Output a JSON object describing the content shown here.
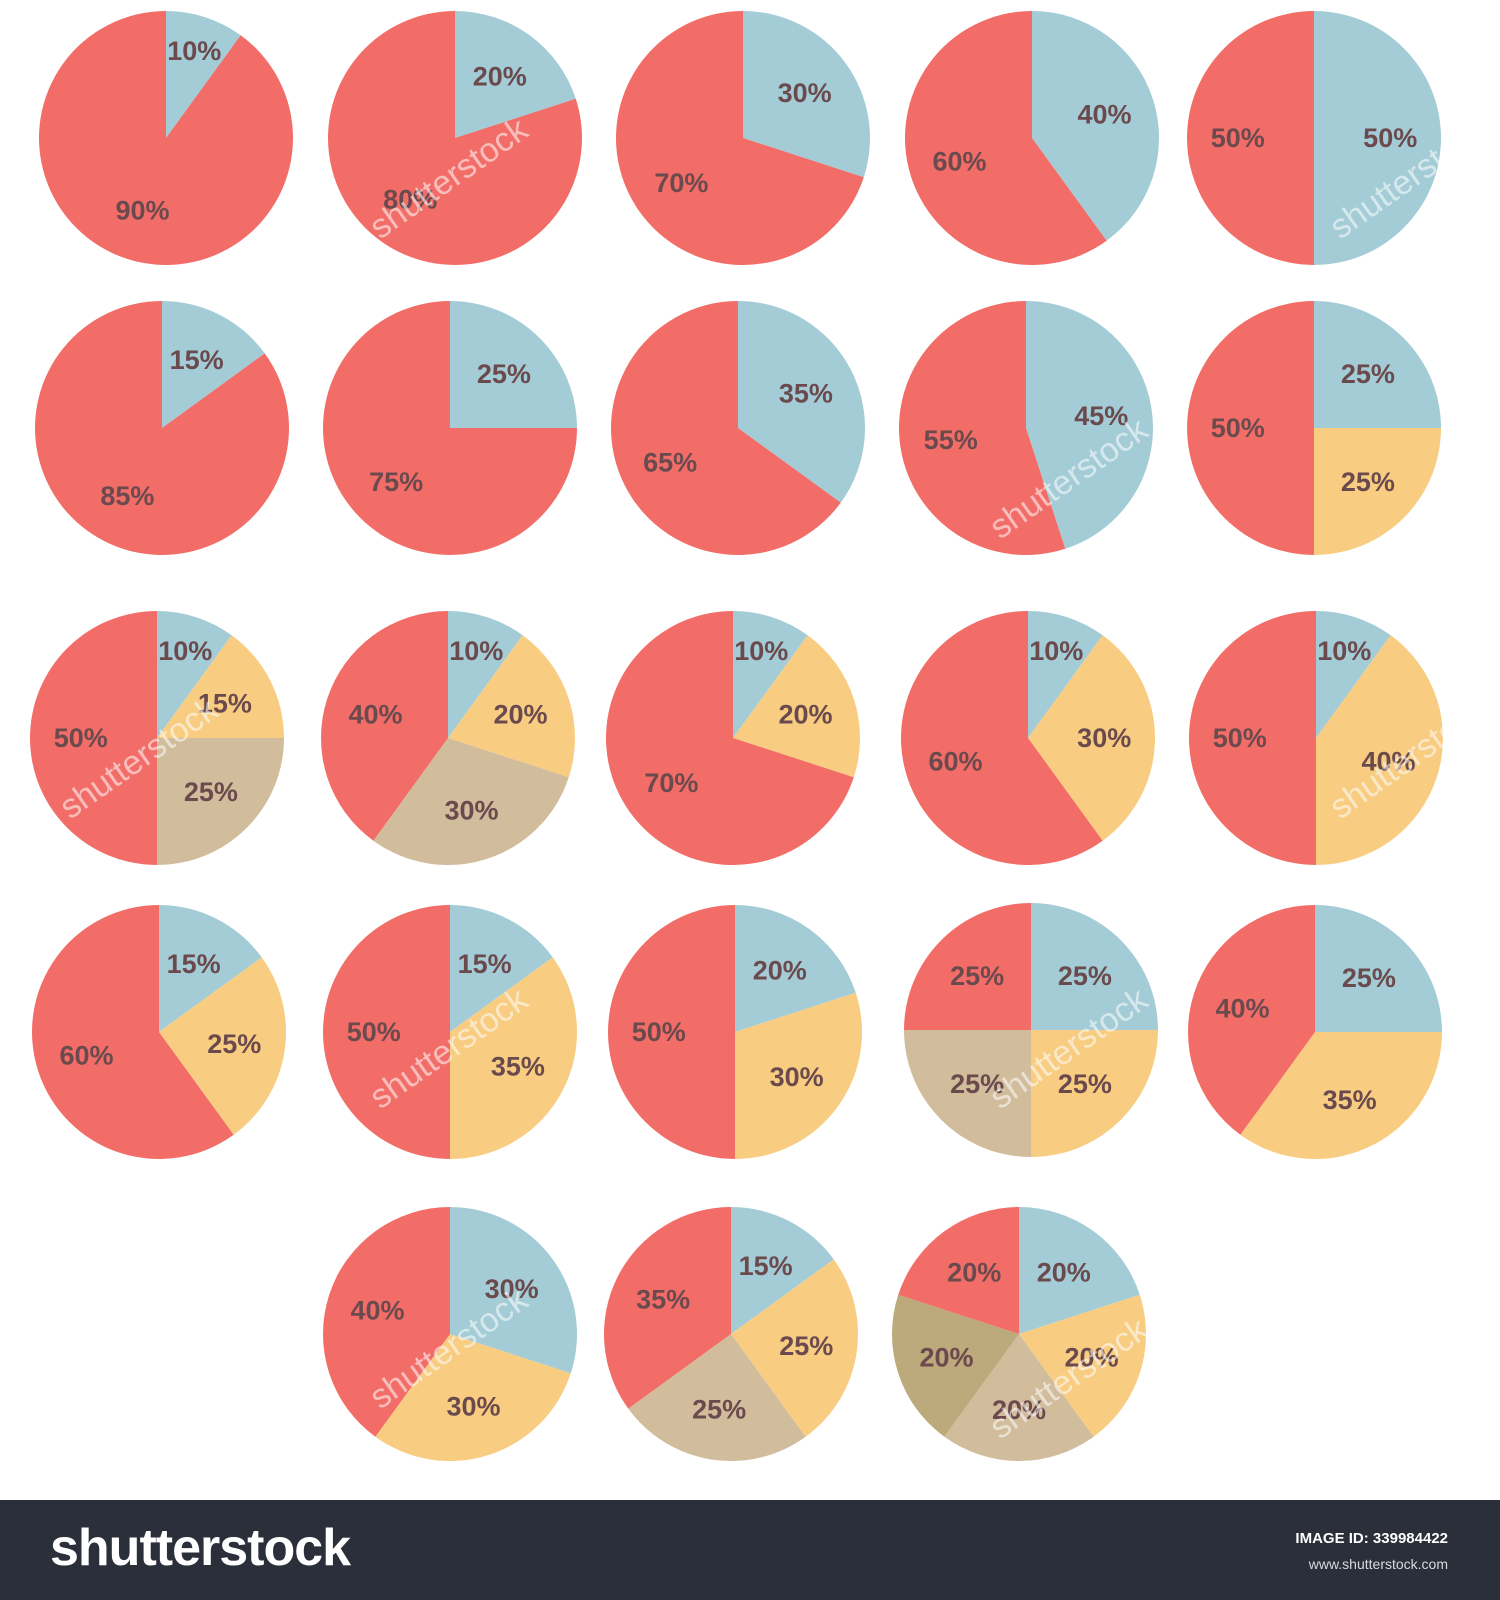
{
  "colors": {
    "red": "#f26d68",
    "blue": "#a3ccd6",
    "yellow": "#f8cd82",
    "tan": "#d1bd9c",
    "olive": "#bca97c",
    "label": "#6b4a4e"
  },
  "chart_data": [
    {
      "type": "pie",
      "slices": [
        {
          "label": "10%",
          "value": 10,
          "color": "blue"
        },
        {
          "label": "90%",
          "value": 90,
          "color": "red"
        }
      ]
    },
    {
      "type": "pie",
      "slices": [
        {
          "label": "20%",
          "value": 20,
          "color": "blue"
        },
        {
          "label": "80%",
          "value": 80,
          "color": "red"
        }
      ]
    },
    {
      "type": "pie",
      "slices": [
        {
          "label": "30%",
          "value": 30,
          "color": "blue"
        },
        {
          "label": "70%",
          "value": 70,
          "color": "red"
        }
      ]
    },
    {
      "type": "pie",
      "slices": [
        {
          "label": "40%",
          "value": 40,
          "color": "blue"
        },
        {
          "label": "60%",
          "value": 60,
          "color": "red"
        }
      ]
    },
    {
      "type": "pie",
      "slices": [
        {
          "label": "50%",
          "value": 50,
          "color": "blue"
        },
        {
          "label": "50%",
          "value": 50,
          "color": "red"
        }
      ]
    },
    {
      "type": "pie",
      "slices": [
        {
          "label": "15%",
          "value": 15,
          "color": "blue"
        },
        {
          "label": "85%",
          "value": 85,
          "color": "red"
        }
      ]
    },
    {
      "type": "pie",
      "slices": [
        {
          "label": "25%",
          "value": 25,
          "color": "blue"
        },
        {
          "label": "75%",
          "value": 75,
          "color": "red"
        }
      ]
    },
    {
      "type": "pie",
      "slices": [
        {
          "label": "35%",
          "value": 35,
          "color": "blue"
        },
        {
          "label": "65%",
          "value": 65,
          "color": "red"
        }
      ]
    },
    {
      "type": "pie",
      "slices": [
        {
          "label": "45%",
          "value": 45,
          "color": "blue"
        },
        {
          "label": "55%",
          "value": 55,
          "color": "red"
        }
      ]
    },
    {
      "type": "pie",
      "slices": [
        {
          "label": "25%",
          "value": 25,
          "color": "blue"
        },
        {
          "label": "25%",
          "value": 25,
          "color": "yellow"
        },
        {
          "label": "50%",
          "value": 50,
          "color": "red"
        }
      ]
    },
    {
      "type": "pie",
      "slices": [
        {
          "label": "10%",
          "value": 10,
          "color": "blue"
        },
        {
          "label": "15%",
          "value": 15,
          "color": "yellow"
        },
        {
          "label": "25%",
          "value": 25,
          "color": "tan"
        },
        {
          "label": "50%",
          "value": 50,
          "color": "red"
        }
      ]
    },
    {
      "type": "pie",
      "slices": [
        {
          "label": "10%",
          "value": 10,
          "color": "blue"
        },
        {
          "label": "20%",
          "value": 20,
          "color": "yellow"
        },
        {
          "label": "30%",
          "value": 30,
          "color": "tan"
        },
        {
          "label": "40%",
          "value": 40,
          "color": "red"
        }
      ]
    },
    {
      "type": "pie",
      "slices": [
        {
          "label": "10%",
          "value": 10,
          "color": "blue"
        },
        {
          "label": "20%",
          "value": 20,
          "color": "yellow"
        },
        {
          "label": "70%",
          "value": 70,
          "color": "red"
        }
      ]
    },
    {
      "type": "pie",
      "slices": [
        {
          "label": "10%",
          "value": 10,
          "color": "blue"
        },
        {
          "label": "30%",
          "value": 30,
          "color": "yellow"
        },
        {
          "label": "60%",
          "value": 60,
          "color": "red"
        }
      ]
    },
    {
      "type": "pie",
      "slices": [
        {
          "label": "10%",
          "value": 10,
          "color": "blue"
        },
        {
          "label": "40%",
          "value": 40,
          "color": "yellow"
        },
        {
          "label": "50%",
          "value": 50,
          "color": "red"
        }
      ]
    },
    {
      "type": "pie",
      "slices": [
        {
          "label": "15%",
          "value": 15,
          "color": "blue"
        },
        {
          "label": "25%",
          "value": 25,
          "color": "yellow"
        },
        {
          "label": "60%",
          "value": 60,
          "color": "red"
        }
      ]
    },
    {
      "type": "pie",
      "slices": [
        {
          "label": "15%",
          "value": 15,
          "color": "blue"
        },
        {
          "label": "35%",
          "value": 35,
          "color": "yellow"
        },
        {
          "label": "50%",
          "value": 50,
          "color": "red"
        }
      ]
    },
    {
      "type": "pie",
      "slices": [
        {
          "label": "20%",
          "value": 20,
          "color": "blue"
        },
        {
          "label": "30%",
          "value": 30,
          "color": "yellow"
        },
        {
          "label": "50%",
          "value": 50,
          "color": "red"
        }
      ]
    },
    {
      "type": "pie",
      "slices": [
        {
          "label": "25%",
          "value": 25,
          "color": "blue"
        },
        {
          "label": "25%",
          "value": 25,
          "color": "yellow"
        },
        {
          "label": "25%",
          "value": 25,
          "color": "tan"
        },
        {
          "label": "25%",
          "value": 25,
          "color": "red"
        }
      ]
    },
    {
      "type": "pie",
      "slices": [
        {
          "label": "25%",
          "value": 25,
          "color": "blue"
        },
        {
          "label": "35%",
          "value": 35,
          "color": "yellow"
        },
        {
          "label": "40%",
          "value": 40,
          "color": "red"
        }
      ]
    },
    {
      "type": "pie",
      "slices": [
        {
          "label": "30%",
          "value": 30,
          "color": "blue"
        },
        {
          "label": "30%",
          "value": 30,
          "color": "yellow"
        },
        {
          "label": "40%",
          "value": 40,
          "color": "red"
        }
      ]
    },
    {
      "type": "pie",
      "slices": [
        {
          "label": "15%",
          "value": 15,
          "color": "blue"
        },
        {
          "label": "25%",
          "value": 25,
          "color": "yellow"
        },
        {
          "label": "25%",
          "value": 25,
          "color": "tan"
        },
        {
          "label": "35%",
          "value": 35,
          "color": "red"
        }
      ]
    },
    {
      "type": "pie",
      "slices": [
        {
          "label": "20%",
          "value": 20,
          "color": "blue"
        },
        {
          "label": "20%",
          "value": 20,
          "color": "yellow"
        },
        {
          "label": "20%",
          "value": 20,
          "color": "tan"
        },
        {
          "label": "20%",
          "value": 20,
          "color": "olive"
        },
        {
          "label": "20%",
          "value": 20,
          "color": "red"
        }
      ]
    }
  ],
  "watermark": {
    "text": "shutterstock"
  },
  "footer": {
    "logo": "shutterstock",
    "image_id": "IMAGE ID: 339984422",
    "site": "www.shutterstock.com"
  }
}
